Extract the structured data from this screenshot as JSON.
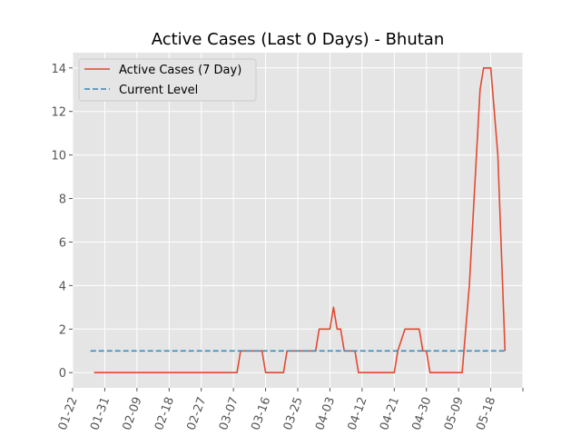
{
  "chart_data": {
    "type": "line",
    "title": "Active Cases (Last 0 Days) - Bhutan",
    "xlabel": "",
    "ylabel": "",
    "x_ticks": [
      "01-22",
      "01-31",
      "02-09",
      "02-18",
      "02-27",
      "03-07",
      "03-16",
      "03-25",
      "04-03",
      "04-12",
      "04-21",
      "04-30",
      "05-09",
      "05-18"
    ],
    "y_ticks": [
      "0",
      "2",
      "4",
      "6",
      "8",
      "10",
      "12",
      "14"
    ],
    "xlim": [
      "01-22",
      "05-27"
    ],
    "ylim": [
      -0.7,
      14.7
    ],
    "grid": true,
    "legend_position": "top-left",
    "series": [
      {
        "name": "Active Cases (7 Day)",
        "color": "#E24A33",
        "style": "solid",
        "points": [
          {
            "x": "01-28",
            "y": 0
          },
          {
            "x": "03-08",
            "y": 0
          },
          {
            "x": "03-09",
            "y": 1
          },
          {
            "x": "03-15",
            "y": 1
          },
          {
            "x": "03-16",
            "y": 0
          },
          {
            "x": "03-21",
            "y": 0
          },
          {
            "x": "03-22",
            "y": 1
          },
          {
            "x": "03-30",
            "y": 1
          },
          {
            "x": "03-31",
            "y": 2
          },
          {
            "x": "04-03",
            "y": 2
          },
          {
            "x": "04-04",
            "y": 3
          },
          {
            "x": "04-05",
            "y": 2
          },
          {
            "x": "04-06",
            "y": 2
          },
          {
            "x": "04-07",
            "y": 1
          },
          {
            "x": "04-10",
            "y": 1
          },
          {
            "x": "04-11",
            "y": 0
          },
          {
            "x": "04-21",
            "y": 0
          },
          {
            "x": "04-22",
            "y": 1
          },
          {
            "x": "04-24",
            "y": 2
          },
          {
            "x": "04-28",
            "y": 2
          },
          {
            "x": "04-29",
            "y": 1
          },
          {
            "x": "04-30",
            "y": 1
          },
          {
            "x": "05-01",
            "y": 0
          },
          {
            "x": "05-10",
            "y": 0
          },
          {
            "x": "05-12",
            "y": 4
          },
          {
            "x": "05-15",
            "y": 13
          },
          {
            "x": "05-16",
            "y": 14
          },
          {
            "x": "05-18",
            "y": 14
          },
          {
            "x": "05-20",
            "y": 10
          },
          {
            "x": "05-22",
            "y": 1
          }
        ]
      },
      {
        "name": "Current Level",
        "color": "#348ABD",
        "style": "dashed",
        "points": [
          {
            "x": "01-27",
            "y": 1
          },
          {
            "x": "05-22",
            "y": 1
          }
        ]
      }
    ]
  }
}
